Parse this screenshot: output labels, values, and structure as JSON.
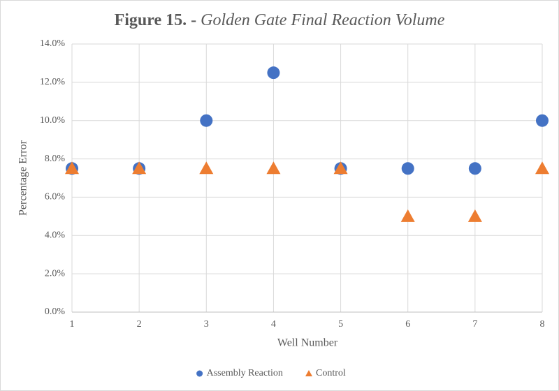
{
  "chart_data": {
    "type": "scatter",
    "title": {
      "prefix": "Figure 15. -",
      "main": "Golden Gate Final Reaction Volume"
    },
    "x_label": "Well Number",
    "y_label": "Percentage Error",
    "x": [
      1,
      2,
      3,
      4,
      5,
      6,
      7,
      8
    ],
    "series": [
      {
        "name": "Assembly Reaction",
        "color": "#4472c4",
        "marker": "circle",
        "values": [
          7.5,
          7.5,
          10,
          12.5,
          7.5,
          7.5,
          7.5,
          10
        ]
      },
      {
        "name": "Control",
        "color": "#ed7d31",
        "marker": "triangle",
        "values": [
          7.5,
          7.5,
          7.5,
          7.5,
          7.5,
          5,
          5,
          7.5
        ]
      }
    ],
    "xlim": [
      1,
      8
    ],
    "xticks": [
      1,
      2,
      3,
      4,
      5,
      6,
      7,
      8
    ],
    "ylim": [
      0,
      14
    ],
    "yticks": [
      {
        "value": 0,
        "label": "0.0%"
      },
      {
        "value": 2,
        "label": "2.0%"
      },
      {
        "value": 4,
        "label": "4.0%"
      },
      {
        "value": 6,
        "label": "6.0%"
      },
      {
        "value": 8,
        "label": "8.0%"
      },
      {
        "value": 10,
        "label": "10.0%"
      },
      {
        "value": 12,
        "label": "12.0%"
      },
      {
        "value": 14,
        "label": "14.0%"
      }
    ],
    "grid": true,
    "legend": "bottom"
  }
}
